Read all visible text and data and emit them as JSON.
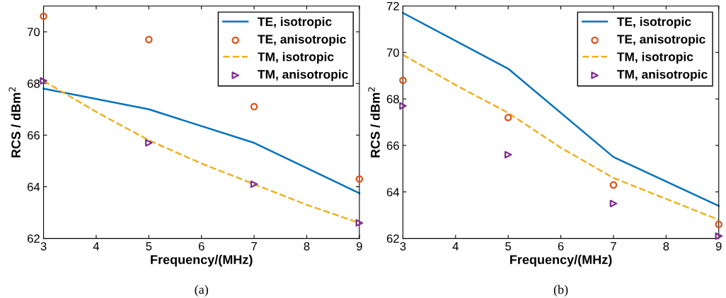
{
  "chart_data": [
    {
      "type": "line",
      "xlabel": "Frequency/(MHz)",
      "ylabel": "RCS / dBm$^{2}$",
      "annotations": [
        "(a)"
      ],
      "xlim": [
        3,
        9
      ],
      "xticks": [
        3,
        4,
        5,
        6,
        7,
        8,
        9
      ],
      "ylim": [
        62,
        71
      ],
      "yticks": [
        62,
        64,
        66,
        68,
        70
      ],
      "legend": "top right",
      "grid": false,
      "series": [
        {
          "name": "TE, isotropic",
          "line_style": "solid",
          "marker": "none",
          "color": "#0072bd",
          "x": [
            3,
            5,
            7,
            9
          ],
          "values": [
            67.8,
            67.0,
            65.7,
            63.75
          ]
        },
        {
          "name": "TE, anisotropic",
          "type": "scatter",
          "marker": "circle",
          "color": "#d95319",
          "x": [
            3,
            5,
            7,
            9
          ],
          "values": [
            70.6,
            69.7,
            67.1,
            64.3
          ]
        },
        {
          "name": "TM, isotropic",
          "line_style": "dashed",
          "marker": "none",
          "color": "#edb120",
          "x": [
            3,
            4,
            5,
            6,
            7,
            8,
            9
          ],
          "values": [
            68.1,
            66.9,
            65.8,
            64.9,
            64.1,
            63.3,
            62.6
          ]
        },
        {
          "name": "TM, anisotropic",
          "type": "scatter",
          "marker": "triangle",
          "color": "#7e2f8e",
          "x": [
            3,
            5,
            7,
            9
          ],
          "values": [
            68.1,
            65.7,
            64.1,
            62.6
          ]
        }
      ]
    },
    {
      "type": "line",
      "xlabel": "Frequency/(MHz)",
      "ylabel": "RCS / dBm$^{2}$",
      "annotations": [
        "(b)"
      ],
      "xlim": [
        3,
        9
      ],
      "xticks": [
        3,
        4,
        5,
        6,
        7,
        8,
        9
      ],
      "ylim": [
        62,
        72
      ],
      "yticks": [
        62,
        64,
        66,
        68,
        70,
        72
      ],
      "legend": "top right",
      "grid": false,
      "series": [
        {
          "name": "TE, isotropic",
          "line_style": "solid",
          "marker": "none",
          "color": "#0072bd",
          "x": [
            3,
            5,
            7,
            9
          ],
          "values": [
            71.7,
            69.3,
            65.5,
            63.4
          ]
        },
        {
          "name": "TE, anisotropic",
          "type": "scatter",
          "marker": "circle",
          "color": "#d95319",
          "x": [
            3,
            5,
            7,
            9
          ],
          "values": [
            68.8,
            67.2,
            64.3,
            62.6
          ]
        },
        {
          "name": "TM, isotropic",
          "line_style": "dashed",
          "marker": "none",
          "color": "#edb120",
          "x": [
            3,
            4,
            5,
            6,
            7,
            8,
            9
          ],
          "values": [
            69.9,
            68.6,
            67.4,
            65.9,
            64.6,
            63.7,
            62.8
          ]
        },
        {
          "name": "TM, anisotropic",
          "type": "scatter",
          "marker": "triangle",
          "color": "#7e2f8e",
          "x": [
            3,
            5,
            7,
            9
          ],
          "values": [
            67.7,
            65.6,
            63.5,
            62.1
          ]
        }
      ]
    }
  ]
}
